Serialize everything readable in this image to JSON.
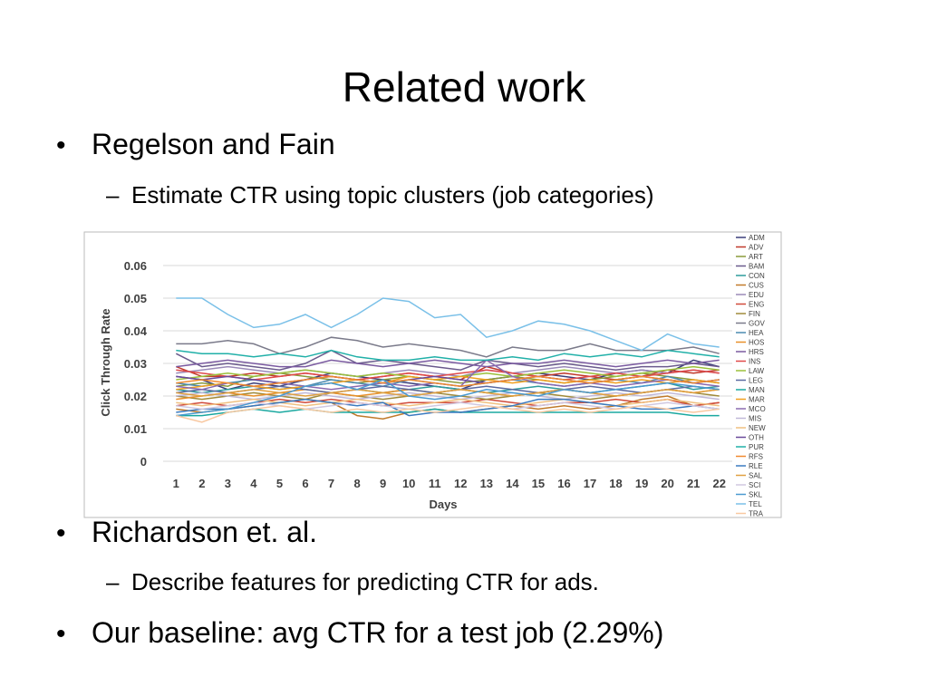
{
  "slide": {
    "title": "Related work",
    "bullets": [
      {
        "text": "Regelson and Fain",
        "sub": [
          "Estimate CTR using topic clusters (job categories)"
        ]
      },
      {
        "text": "Richardson et. al.",
        "sub": [
          "Describe features for predicting CTR for ads."
        ]
      },
      {
        "text": "Our baseline: avg CTR for a test job (2.29%)",
        "sub": []
      }
    ]
  },
  "chart_data": {
    "type": "line",
    "x_label": "Days",
    "y_label": "Click Through Rate",
    "x": [
      1,
      2,
      3,
      4,
      5,
      6,
      7,
      8,
      9,
      10,
      11,
      12,
      13,
      14,
      15,
      16,
      17,
      18,
      19,
      20,
      21,
      22
    ],
    "xlim": [
      0.5,
      22.5
    ],
    "ylim": [
      0,
      0.06
    ],
    "yticks": [
      0,
      0.01,
      0.02,
      0.03,
      0.04,
      0.05,
      0.06
    ],
    "grid": true,
    "legend": "right",
    "series": [
      {
        "name": "ADM",
        "color": "#3b3f7a",
        "values": [
          0.026,
          0.025,
          0.022,
          0.024,
          0.023,
          0.025,
          0.027,
          0.026,
          0.025,
          0.024,
          0.023,
          0.022,
          0.025,
          0.026,
          0.027,
          0.026,
          0.025,
          0.027,
          0.028,
          0.027,
          0.031,
          0.029
        ]
      },
      {
        "name": "ADV",
        "color": "#c0392b",
        "values": [
          0.029,
          0.026,
          0.026,
          0.027,
          0.026,
          0.027,
          0.026,
          0.025,
          0.026,
          0.027,
          0.026,
          0.025,
          0.029,
          0.027,
          0.026,
          0.027,
          0.026,
          0.025,
          0.026,
          0.028,
          0.027,
          0.028
        ]
      },
      {
        "name": "ART",
        "color": "#8a9a3b",
        "values": [
          0.023,
          0.024,
          0.023,
          0.026,
          0.027,
          0.026,
          0.025,
          0.024,
          0.025,
          0.026,
          0.025,
          0.024,
          0.025,
          0.026,
          0.025,
          0.024,
          0.025,
          0.026,
          0.027,
          0.026,
          0.025,
          0.024
        ]
      },
      {
        "name": "BAM",
        "color": "#6a5a8c",
        "values": [
          0.033,
          0.029,
          0.03,
          0.029,
          0.028,
          0.03,
          0.034,
          0.03,
          0.031,
          0.03,
          0.029,
          0.028,
          0.031,
          0.03,
          0.029,
          0.03,
          0.029,
          0.028,
          0.029,
          0.029,
          0.03,
          0.029
        ]
      },
      {
        "name": "CON",
        "color": "#2e9c9c",
        "values": [
          0.022,
          0.021,
          0.022,
          0.023,
          0.022,
          0.023,
          0.024,
          0.022,
          0.021,
          0.022,
          0.023,
          0.022,
          0.021,
          0.022,
          0.023,
          0.022,
          0.021,
          0.022,
          0.023,
          0.024,
          0.022,
          0.023
        ]
      },
      {
        "name": "CUS",
        "color": "#c07a2a",
        "values": [
          0.016,
          0.015,
          0.016,
          0.017,
          0.018,
          0.019,
          0.018,
          0.014,
          0.013,
          0.015,
          0.016,
          0.015,
          0.016,
          0.017,
          0.016,
          0.017,
          0.016,
          0.017,
          0.019,
          0.02,
          0.017,
          0.018
        ]
      },
      {
        "name": "EDU",
        "color": "#9a8ab8",
        "values": [
          0.027,
          0.028,
          0.029,
          0.028,
          0.027,
          0.028,
          0.027,
          0.026,
          0.027,
          0.028,
          0.027,
          0.026,
          0.028,
          0.027,
          0.028,
          0.029,
          0.028,
          0.027,
          0.028,
          0.027,
          0.028,
          0.027
        ]
      },
      {
        "name": "ENG",
        "color": "#d04a3a",
        "values": [
          0.017,
          0.018,
          0.017,
          0.018,
          0.019,
          0.018,
          0.019,
          0.018,
          0.017,
          0.018,
          0.018,
          0.018,
          0.019,
          0.018,
          0.017,
          0.018,
          0.018,
          0.019,
          0.018,
          0.019,
          0.017,
          0.018
        ]
      },
      {
        "name": "FIN",
        "color": "#a08a3a",
        "values": [
          0.02,
          0.019,
          0.02,
          0.021,
          0.02,
          0.019,
          0.021,
          0.02,
          0.019,
          0.02,
          0.021,
          0.02,
          0.019,
          0.02,
          0.021,
          0.02,
          0.019,
          0.02,
          0.021,
          0.022,
          0.021,
          0.02
        ]
      },
      {
        "name": "GOV",
        "color": "#7a7a8a",
        "values": [
          0.036,
          0.036,
          0.037,
          0.036,
          0.033,
          0.035,
          0.038,
          0.037,
          0.035,
          0.036,
          0.035,
          0.034,
          0.032,
          0.035,
          0.034,
          0.034,
          0.036,
          0.034,
          0.034,
          0.034,
          0.035,
          0.033
        ]
      },
      {
        "name": "HEA",
        "color": "#4a8ab0",
        "values": [
          0.024,
          0.023,
          0.024,
          0.025,
          0.024,
          0.023,
          0.025,
          0.024,
          0.023,
          0.025,
          0.024,
          0.023,
          0.024,
          0.025,
          0.024,
          0.023,
          0.024,
          0.025,
          0.024,
          0.026,
          0.024,
          0.025
        ]
      },
      {
        "name": "HOS",
        "color": "#e8902a",
        "values": [
          0.019,
          0.02,
          0.021,
          0.02,
          0.021,
          0.022,
          0.021,
          0.02,
          0.021,
          0.022,
          0.021,
          0.022,
          0.021,
          0.02,
          0.021,
          0.022,
          0.021,
          0.02,
          0.021,
          0.022,
          0.021,
          0.022
        ]
      },
      {
        "name": "HRS",
        "color": "#7a5aa0",
        "values": [
          0.029,
          0.03,
          0.031,
          0.03,
          0.029,
          0.029,
          0.031,
          0.03,
          0.029,
          0.03,
          0.031,
          0.03,
          0.029,
          0.03,
          0.03,
          0.031,
          0.03,
          0.029,
          0.03,
          0.031,
          0.03,
          0.031
        ]
      },
      {
        "name": "INS",
        "color": "#e04a4a",
        "values": [
          0.028,
          0.027,
          0.026,
          0.025,
          0.026,
          0.027,
          0.026,
          0.025,
          0.026,
          0.027,
          0.026,
          0.027,
          0.028,
          0.027,
          0.026,
          0.025,
          0.026,
          0.027,
          0.026,
          0.027,
          0.028,
          0.027
        ]
      },
      {
        "name": "LAW",
        "color": "#9ac03a",
        "values": [
          0.025,
          0.026,
          0.027,
          0.026,
          0.027,
          0.028,
          0.027,
          0.026,
          0.027,
          0.026,
          0.025,
          0.026,
          0.027,
          0.026,
          0.027,
          0.028,
          0.027,
          0.026,
          0.027,
          0.028,
          0.029,
          0.028
        ]
      },
      {
        "name": "LEG",
        "color": "#5a6aa0",
        "values": [
          0.021,
          0.022,
          0.021,
          0.022,
          0.023,
          0.022,
          0.021,
          0.022,
          0.023,
          0.022,
          0.021,
          0.022,
          0.023,
          0.022,
          0.021,
          0.022,
          0.023,
          0.022,
          0.021,
          0.022,
          0.023,
          0.022
        ]
      },
      {
        "name": "MAN",
        "color": "#1aa8a0",
        "values": [
          0.014,
          0.014,
          0.015,
          0.016,
          0.015,
          0.016,
          0.015,
          0.015,
          0.015,
          0.015,
          0.016,
          0.015,
          0.015,
          0.015,
          0.015,
          0.015,
          0.015,
          0.015,
          0.015,
          0.015,
          0.014,
          0.014
        ]
      },
      {
        "name": "MAR",
        "color": "#f0a020",
        "values": [
          0.022,
          0.023,
          0.024,
          0.023,
          0.022,
          0.023,
          0.024,
          0.025,
          0.024,
          0.026,
          0.025,
          0.026,
          0.025,
          0.024,
          0.025,
          0.024,
          0.025,
          0.024,
          0.025,
          0.024,
          0.025,
          0.024
        ]
      },
      {
        "name": "MCO",
        "color": "#8a6ab0",
        "values": [
          0.023,
          0.022,
          0.024,
          0.023,
          0.024,
          0.023,
          0.022,
          0.023,
          0.024,
          0.023,
          0.024,
          0.023,
          0.031,
          0.026,
          0.024,
          0.023,
          0.024,
          0.023,
          0.024,
          0.025,
          0.024,
          0.023
        ]
      },
      {
        "name": "MIS",
        "color": "#c0b8d8",
        "values": [
          0.02,
          0.021,
          0.02,
          0.019,
          0.02,
          0.021,
          0.02,
          0.019,
          0.02,
          0.021,
          0.02,
          0.019,
          0.02,
          0.021,
          0.02,
          0.019,
          0.02,
          0.021,
          0.02,
          0.021,
          0.02,
          0.019
        ]
      },
      {
        "name": "NEW",
        "color": "#f0c080",
        "values": [
          0.018,
          0.017,
          0.018,
          0.019,
          0.018,
          0.017,
          0.018,
          0.019,
          0.018,
          0.017,
          0.018,
          0.019,
          0.018,
          0.017,
          0.018,
          0.019,
          0.018,
          0.017,
          0.018,
          0.019,
          0.018,
          0.017
        ]
      },
      {
        "name": "OTH",
        "color": "#6a4a9a",
        "values": [
          0.026,
          0.025,
          0.026,
          0.025,
          0.024,
          0.025,
          0.026,
          0.025,
          0.024,
          0.025,
          0.026,
          0.025,
          0.024,
          0.025,
          0.026,
          0.025,
          0.024,
          0.025,
          0.026,
          0.025,
          0.024,
          0.025
        ]
      },
      {
        "name": "PUR",
        "color": "#20b0a8",
        "values": [
          0.034,
          0.033,
          0.033,
          0.032,
          0.033,
          0.032,
          0.034,
          0.032,
          0.031,
          0.031,
          0.032,
          0.031,
          0.031,
          0.032,
          0.031,
          0.033,
          0.032,
          0.033,
          0.032,
          0.034,
          0.033,
          0.032
        ]
      },
      {
        "name": "RFS",
        "color": "#f08a30",
        "values": [
          0.024,
          0.025,
          0.024,
          0.023,
          0.024,
          0.025,
          0.026,
          0.025,
          0.024,
          0.025,
          0.024,
          0.023,
          0.024,
          0.025,
          0.026,
          0.025,
          0.024,
          0.025,
          0.026,
          0.025,
          0.024,
          0.025
        ]
      },
      {
        "name": "RLE",
        "color": "#3a7ac0",
        "values": [
          0.015,
          0.016,
          0.016,
          0.017,
          0.018,
          0.019,
          0.018,
          0.017,
          0.018,
          0.014,
          0.015,
          0.015,
          0.016,
          0.017,
          0.019,
          0.019,
          0.018,
          0.017,
          0.016,
          0.016,
          0.017,
          0.016
        ]
      },
      {
        "name": "SAL",
        "color": "#e0a040",
        "values": [
          0.021,
          0.02,
          0.021,
          0.022,
          0.021,
          0.02,
          0.021,
          0.022,
          0.021,
          0.02,
          0.021,
          0.022,
          0.021,
          0.02,
          0.021,
          0.022,
          0.021,
          0.02,
          0.021,
          0.022,
          0.021,
          0.022
        ]
      },
      {
        "name": "SCI",
        "color": "#d0c8e0",
        "values": [
          0.017,
          0.016,
          0.017,
          0.018,
          0.017,
          0.016,
          0.017,
          0.018,
          0.017,
          0.016,
          0.017,
          0.018,
          0.017,
          0.016,
          0.017,
          0.018,
          0.017,
          0.016,
          0.017,
          0.018,
          0.017,
          0.016
        ]
      },
      {
        "name": "SKL",
        "color": "#4a9ad0",
        "values": [
          0.014,
          0.015,
          0.016,
          0.018,
          0.02,
          0.023,
          0.024,
          0.022,
          0.025,
          0.02,
          0.019,
          0.02,
          0.022,
          0.021,
          0.02,
          0.022,
          0.021,
          0.022,
          0.023,
          0.024,
          0.023,
          0.022
        ]
      },
      {
        "name": "TEL",
        "color": "#7ac0e8",
        "values": [
          0.05,
          0.05,
          0.045,
          0.041,
          0.042,
          0.045,
          0.041,
          0.045,
          0.05,
          0.049,
          0.044,
          0.045,
          0.038,
          0.04,
          0.043,
          0.042,
          0.04,
          0.037,
          0.034,
          0.039,
          0.036,
          0.035
        ]
      },
      {
        "name": "TRA",
        "color": "#f8c8a0",
        "values": [
          0.014,
          0.012,
          0.015,
          0.016,
          0.017,
          0.016,
          0.015,
          0.016,
          0.015,
          0.016,
          0.015,
          0.016,
          0.017,
          0.016,
          0.015,
          0.016,
          0.015,
          0.016,
          0.017,
          0.016,
          0.015,
          0.016
        ]
      }
    ]
  }
}
